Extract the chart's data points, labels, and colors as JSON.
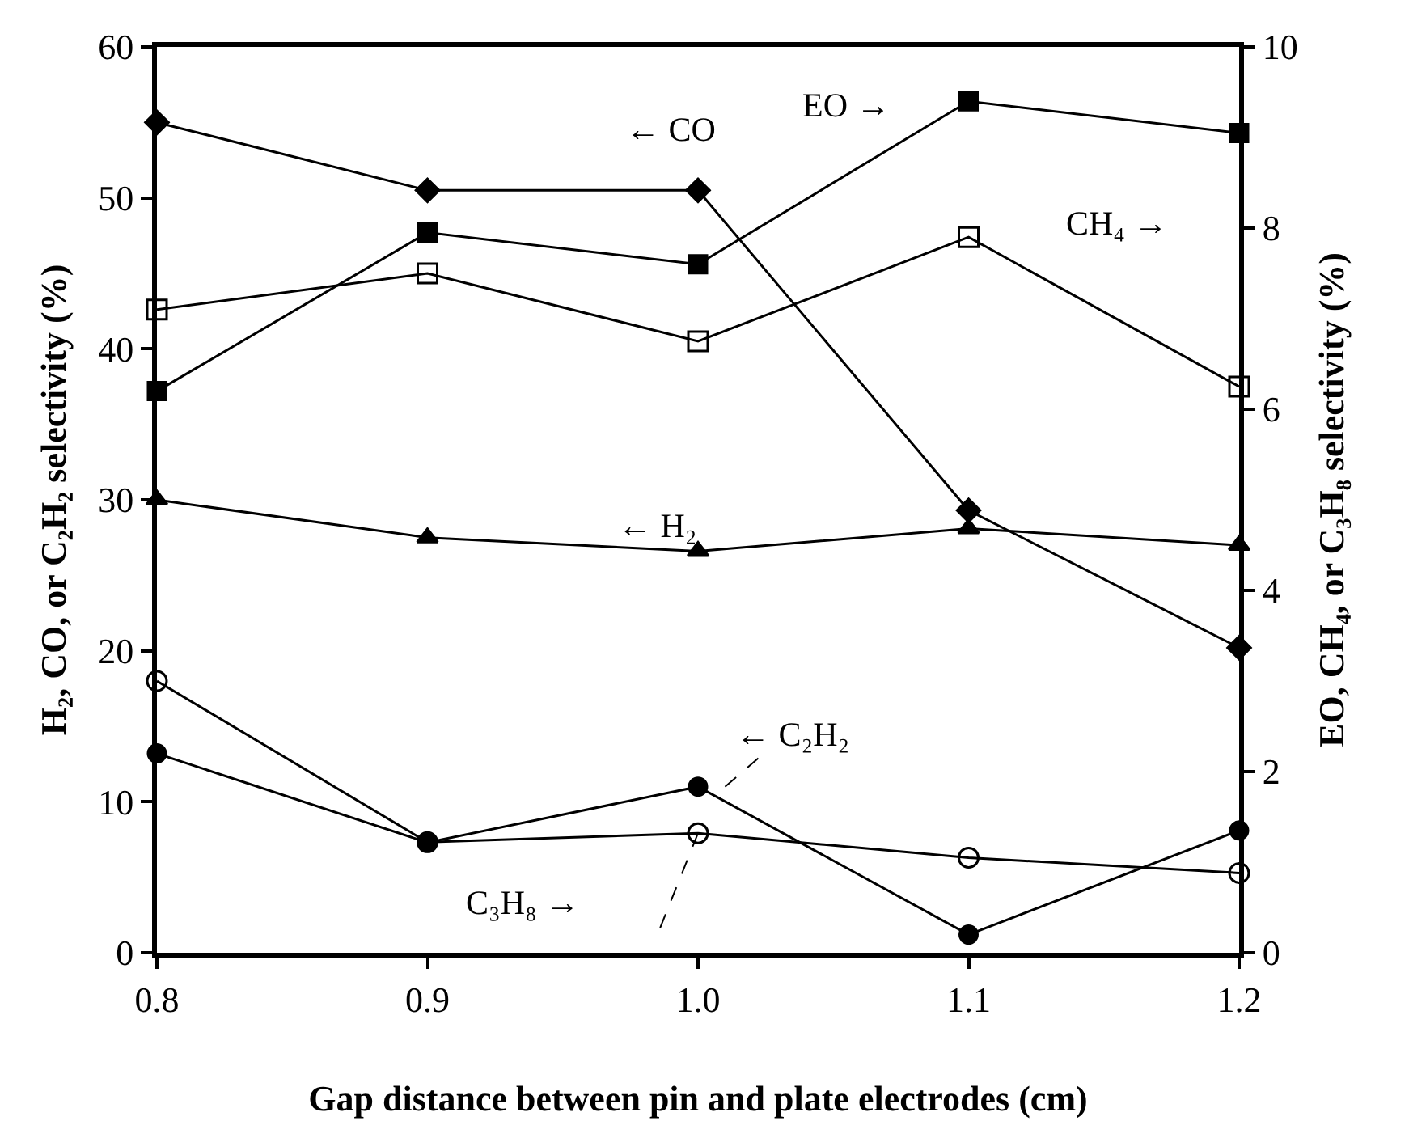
{
  "chart_data": {
    "type": "line",
    "xlabel": "Gap distance between pin and plate electrodes (cm)",
    "ylabel": "H₂, CO, or C₂H₂ selectivity (%)",
    "y2label": "EO, CH₄, or C₃H₈ selectivity (%)",
    "x": [
      0.8,
      0.9,
      1.0,
      1.1,
      1.2
    ],
    "xlim": [
      0.8,
      1.2
    ],
    "xticks": [
      {
        "value": 0.8,
        "label": "0.8"
      },
      {
        "value": 0.9,
        "label": "0.9"
      },
      {
        "value": 1.0,
        "label": "1.0"
      },
      {
        "value": 1.1,
        "label": "1.1"
      },
      {
        "value": 1.2,
        "label": "1.2"
      }
    ],
    "ylim": [
      0,
      60
    ],
    "yticks": [
      0,
      10,
      20,
      30,
      40,
      50,
      60
    ],
    "y2lim": [
      0,
      10
    ],
    "y2ticks": [
      0,
      2,
      4,
      6,
      8,
      10
    ],
    "grid": false,
    "legend": false,
    "series": [
      {
        "name": "← CO",
        "color": "#000000",
        "marker": "diamond",
        "values": [
          55,
          50.5,
          50.5,
          29.3,
          20.2
        ]
      },
      {
        "name": "CH₄ →",
        "color": "#000000",
        "marker": "square-open",
        "axis": "y2",
        "values": [
          7.1,
          7.5,
          6.75,
          7.9,
          6.25
        ]
      },
      {
        "name": "EO →",
        "color": "#000000",
        "marker": "square",
        "axis": "y2",
        "values": [
          6.2,
          7.95,
          7.6,
          9.4,
          9.05
        ]
      },
      {
        "name": "← H₂",
        "color": "#000000",
        "marker": "triangle",
        "values": [
          30,
          27.5,
          26.6,
          28.1,
          27
        ]
      },
      {
        "name": "← C₂H₂",
        "color": "#000000",
        "marker": "circle",
        "values": [
          13.2,
          7.3,
          11,
          1.2,
          8.1
        ]
      },
      {
        "name": "C₃H₈ →",
        "color": "#000000",
        "marker": "circle-open",
        "axis": "y2",
        "values": [
          3.0,
          1.22,
          1.32,
          1.05,
          0.88
        ]
      }
    ]
  }
}
